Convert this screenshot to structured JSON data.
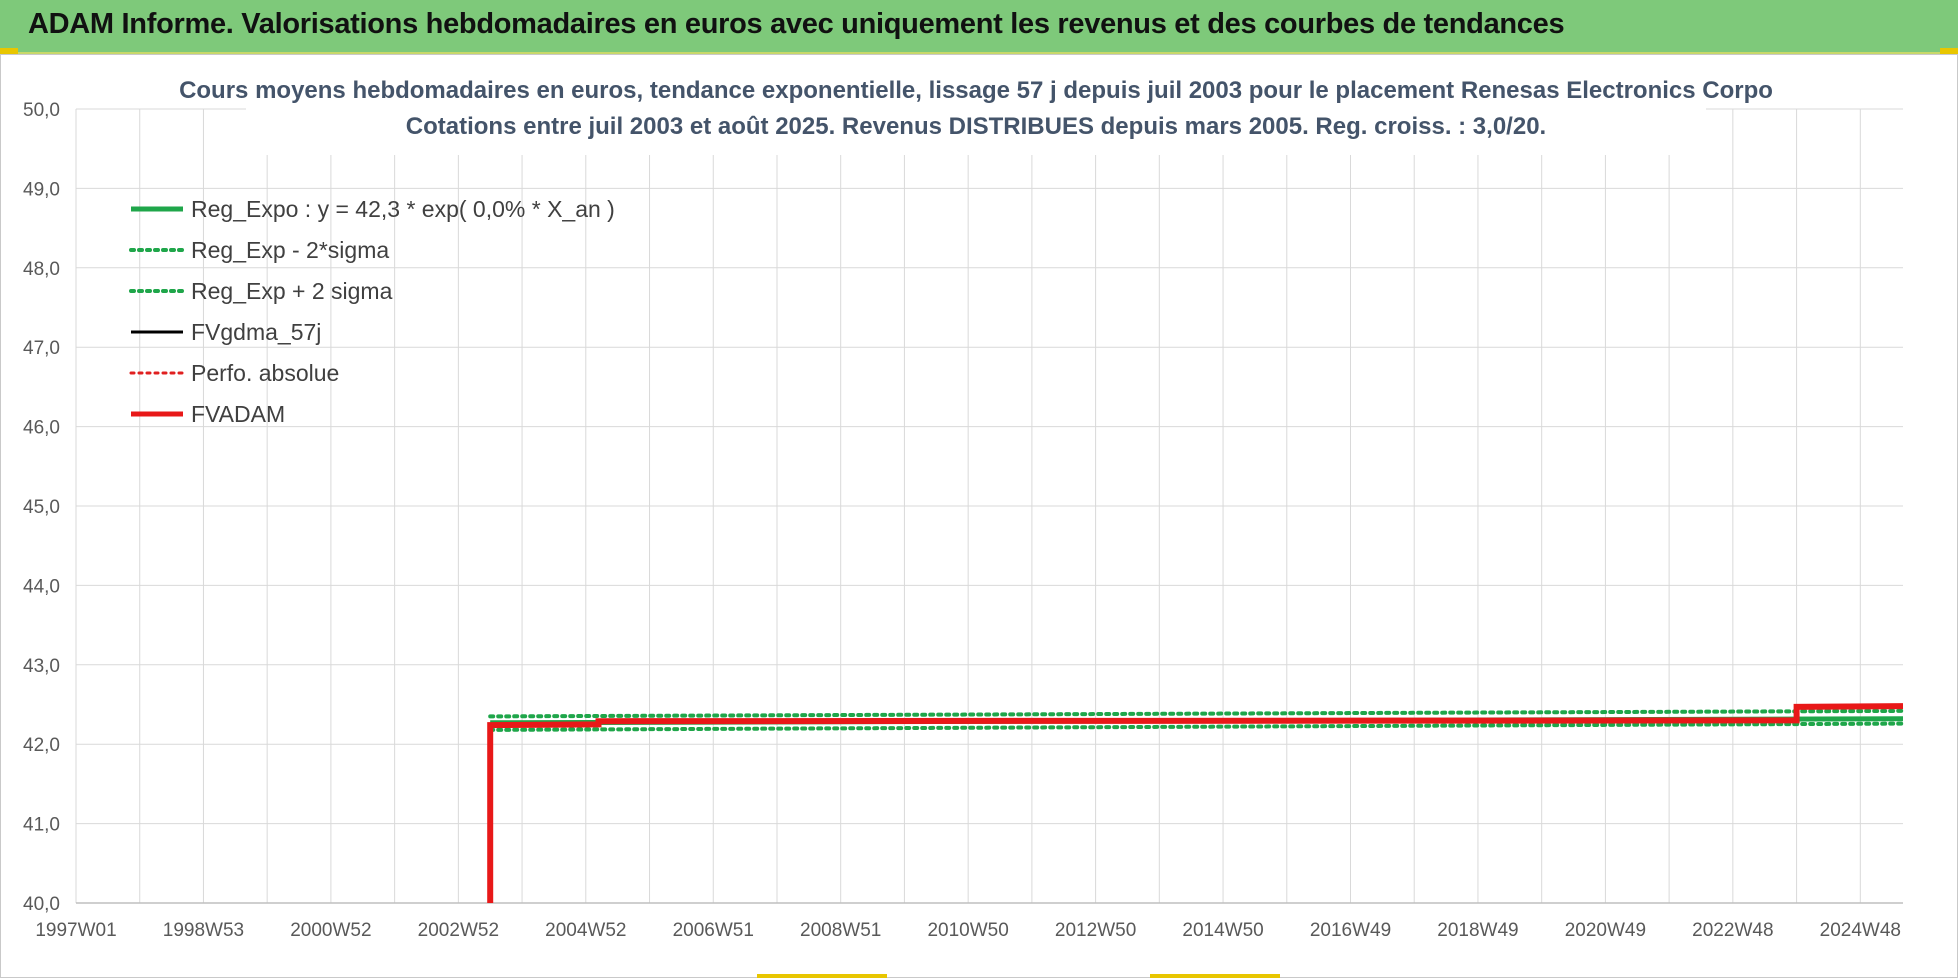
{
  "banner": {
    "title": "ADAM Informe. Valorisations hebdomadaires en euros avec uniquement les revenus et des courbes de tendances"
  },
  "chart_data": {
    "type": "line",
    "title": "Cours moyens hebdomadaires en euros, tendance exponentielle, lissage 57 j depuis juil 2003 pour le placement Renesas Electronics Corpo",
    "subtitle": "Cotations entre juil 2003 et août 2025. Revenus DISTRIBUES depuis mars 2005. Reg. croiss. : 3,0/20.",
    "xlabel": "",
    "ylabel": "",
    "x_domain": [
      1997.0,
      2025.67
    ],
    "x_ticks": [
      {
        "label": "1997W01",
        "x": 1997.0
      },
      {
        "label": "1998W53",
        "x": 1999.0
      },
      {
        "label": "2000W52",
        "x": 2001.0
      },
      {
        "label": "2002W52",
        "x": 2003.0
      },
      {
        "label": "2004W52",
        "x": 2005.0
      },
      {
        "label": "2006W51",
        "x": 2007.0
      },
      {
        "label": "2008W51",
        "x": 2009.0
      },
      {
        "label": "2010W50",
        "x": 2011.0
      },
      {
        "label": "2012W50",
        "x": 2013.0
      },
      {
        "label": "2014W50",
        "x": 2015.0
      },
      {
        "label": "2016W49",
        "x": 2017.0
      },
      {
        "label": "2018W49",
        "x": 2019.0
      },
      {
        "label": "2020W49",
        "x": 2021.0
      },
      {
        "label": "2022W48",
        "x": 2023.0
      },
      {
        "label": "2024W48",
        "x": 2025.0
      }
    ],
    "ylim": [
      40.0,
      50.0
    ],
    "y_ticks": [
      "40,0",
      "41,0",
      "42,0",
      "43,0",
      "44,0",
      "45,0",
      "46,0",
      "47,0",
      "48,0",
      "49,0",
      "50,0"
    ],
    "grid": true,
    "legend_position": "top-left",
    "series": [
      {
        "name": "Reg_Expo : y = 42,3 * exp( 0,0% *  X_an )",
        "color": "#1fa64a",
        "style": "solid",
        "width": 5,
        "points": [
          [
            2003.5,
            42.27
          ],
          [
            2025.67,
            42.32
          ]
        ]
      },
      {
        "name": "Reg_Exp - 2*sigma",
        "color": "#1fa64a",
        "style": "dotted",
        "width": 4,
        "points": [
          [
            2003.5,
            42.18
          ],
          [
            2025.67,
            42.26
          ]
        ]
      },
      {
        "name": "Reg_Exp + 2 sigma",
        "color": "#1fa64a",
        "style": "dotted",
        "width": 4,
        "points": [
          [
            2003.5,
            42.35
          ],
          [
            2025.67,
            42.42
          ]
        ]
      },
      {
        "name": "FVgdma_57j",
        "color": "#000000",
        "style": "solid",
        "width": 3,
        "points": [
          [
            2003.5,
            42.24
          ],
          [
            2005.2,
            42.25
          ],
          [
            2005.2,
            42.29
          ],
          [
            2024.0,
            42.3
          ],
          [
            2024.0,
            42.47
          ],
          [
            2025.67,
            42.48
          ]
        ]
      },
      {
        "name": "Perfo. absolue",
        "color": "#e02020",
        "style": "dotted",
        "width": 3,
        "points": [
          [
            2003.5,
            42.24
          ],
          [
            2005.2,
            42.25
          ],
          [
            2005.2,
            42.29
          ],
          [
            2024.0,
            42.3
          ],
          [
            2024.0,
            42.47
          ],
          [
            2025.67,
            42.48
          ]
        ]
      },
      {
        "name": "FVADAM",
        "color": "#e81818",
        "style": "solid",
        "width": 6,
        "points": [
          [
            2003.5,
            40.0
          ],
          [
            2003.5,
            42.24
          ],
          [
            2005.2,
            42.25
          ],
          [
            2005.2,
            42.29
          ],
          [
            2024.0,
            42.3
          ],
          [
            2024.0,
            42.47
          ],
          [
            2025.67,
            42.48
          ]
        ]
      }
    ]
  }
}
